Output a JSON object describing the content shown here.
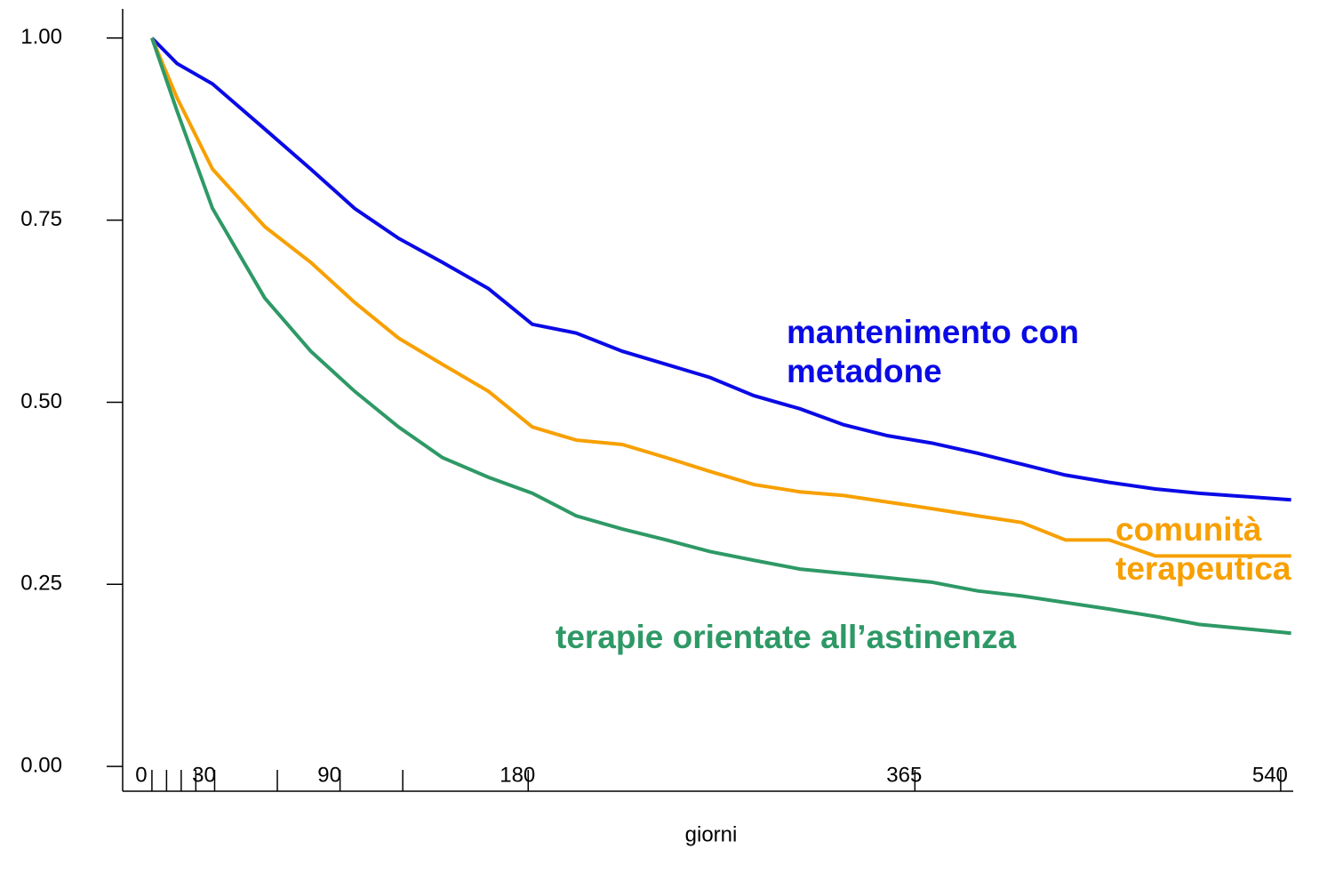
{
  "chart_data": {
    "type": "line",
    "x_label": "giorni",
    "x": [
      0,
      12,
      29,
      54,
      76,
      97,
      118,
      139,
      161,
      182,
      203,
      225,
      246,
      267,
      288,
      310,
      331,
      352,
      373,
      395,
      416,
      437,
      458,
      480,
      501,
      545
    ],
    "series": [
      {
        "name": "mantenimento con metadone",
        "color": "#0a0ae6",
        "values": [
          1.0,
          0.965,
          0.937,
          0.875,
          0.82,
          0.766,
          0.725,
          0.692,
          0.656,
          0.607,
          0.595,
          0.57,
          0.552,
          0.534,
          0.509,
          0.491,
          0.469,
          0.454,
          0.444,
          0.43,
          0.415,
          0.4,
          0.39,
          0.381,
          0.375,
          0.366
        ]
      },
      {
        "name": "comunità terapeutica",
        "color": "#f7a000",
        "values": [
          1.0,
          0.918,
          0.82,
          0.741,
          0.692,
          0.637,
          0.588,
          0.552,
          0.515,
          0.466,
          0.448,
          0.442,
          0.424,
          0.405,
          0.387,
          0.377,
          0.372,
          0.363,
          0.354,
          0.344,
          0.335,
          0.311,
          0.311,
          0.289,
          0.289,
          0.289
        ]
      },
      {
        "name": "terapie orientate all’astinenza",
        "color": "#2e9966",
        "values": [
          1.0,
          0.9,
          0.766,
          0.643,
          0.57,
          0.515,
          0.466,
          0.424,
          0.397,
          0.375,
          0.344,
          0.326,
          0.311,
          0.295,
          0.283,
          0.271,
          0.265,
          0.259,
          0.253,
          0.241,
          0.234,
          0.225,
          0.216,
          0.206,
          0.195,
          0.183
        ]
      }
    ],
    "xlim": [
      -14,
      546
    ],
    "xticks": [
      0,
      30,
      90,
      180,
      365,
      540
    ],
    "xminor_ticks": [
      7,
      14,
      21,
      60,
      120
    ],
    "ylim": [
      -0.034,
      1.04
    ],
    "yticks": [
      {
        "value": 0,
        "label": "0.00"
      },
      {
        "value": 0.25,
        "label": "0.25"
      },
      {
        "value": 0.5,
        "label": "0.50"
      },
      {
        "value": 0.75,
        "label": "0.75"
      },
      {
        "value": 1,
        "label": "1.00"
      }
    ]
  }
}
